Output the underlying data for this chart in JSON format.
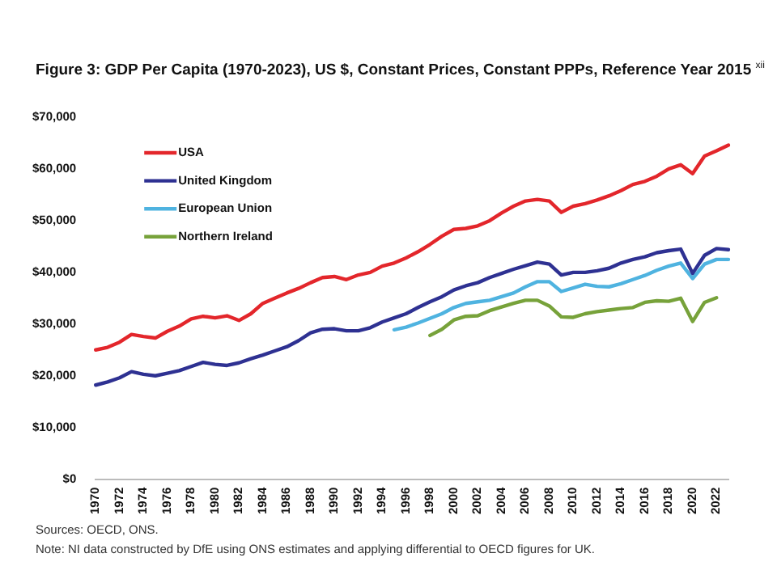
{
  "chart_data": {
    "type": "line",
    "title": "Figure 3: GDP Per Capita (1970-2023), US $, Constant Prices, Constant PPPs, Reference Year 2015 $^{xii}$",
    "categories": [
      "1970",
      null,
      "1972",
      null,
      "1974",
      null,
      "1976",
      null,
      "1978",
      null,
      "1980",
      null,
      "1982",
      null,
      "1984",
      null,
      "1986",
      null,
      "1988",
      null,
      "1990",
      null,
      "1992",
      null,
      "1994",
      null,
      "1996",
      null,
      "1998",
      null,
      "2000",
      null,
      "2002",
      null,
      "2004",
      null,
      "2006",
      null,
      "2008",
      null,
      "2010",
      null,
      "2012",
      null,
      "2014",
      null,
      "2016",
      null,
      "2018",
      null,
      "2020",
      null,
      "2022",
      null
    ],
    "series": [
      {
        "name": "USA",
        "color": "#e3262b",
        "values": [
          25000,
          25500,
          26500,
          28000,
          27600,
          27300,
          28600,
          29600,
          31000,
          31500,
          31200,
          31600,
          30700,
          32000,
          34000,
          35000,
          36000,
          36900,
          38000,
          39000,
          39200,
          38600,
          39500,
          40000,
          41200,
          41800,
          42800,
          44000,
          45400,
          47000,
          48300,
          48500,
          49000,
          50000,
          51500,
          52800,
          53800,
          54100,
          53800,
          51600,
          52800,
          53300,
          54000,
          54800,
          55800,
          57000,
          57600,
          58600,
          60000,
          60800,
          59100,
          62500,
          63500,
          64600
        ]
      },
      {
        "name": "United Kingdom",
        "color": "#2e3192",
        "values": [
          18200,
          18800,
          19600,
          20800,
          20300,
          20000,
          20500,
          21000,
          21800,
          22600,
          22200,
          22000,
          22500,
          23300,
          24000,
          24800,
          25600,
          26800,
          28300,
          29000,
          29100,
          28700,
          28700,
          29300,
          30400,
          31200,
          32000,
          33200,
          34300,
          35300,
          36600,
          37400,
          38000,
          39000,
          39800,
          40600,
          41300,
          42000,
          41600,
          39500,
          40000,
          40000,
          40300,
          40800,
          41800,
          42500,
          43000,
          43800,
          44200,
          44500,
          39800,
          43300,
          44600,
          44400
        ]
      },
      {
        "name": "European Union",
        "color": "#4fb3e0",
        "values": [
          null,
          null,
          null,
          null,
          null,
          null,
          null,
          null,
          null,
          null,
          null,
          null,
          null,
          null,
          null,
          null,
          null,
          null,
          null,
          null,
          null,
          null,
          null,
          null,
          null,
          28900,
          29400,
          30200,
          31100,
          32000,
          33200,
          34000,
          34300,
          34600,
          35300,
          36000,
          37200,
          38200,
          38200,
          36300,
          37000,
          37700,
          37300,
          37200,
          37800,
          38600,
          39400,
          40400,
          41200,
          41800,
          38800,
          41600,
          42500,
          42500
        ]
      },
      {
        "name": "Northern Ireland",
        "color": "#77a23a",
        "values": [
          null,
          null,
          null,
          null,
          null,
          null,
          null,
          null,
          null,
          null,
          null,
          null,
          null,
          null,
          null,
          null,
          null,
          null,
          null,
          null,
          null,
          null,
          null,
          null,
          null,
          null,
          null,
          null,
          27800,
          29000,
          30800,
          31500,
          31600,
          32600,
          33300,
          34000,
          34600,
          34600,
          33500,
          31400,
          31300,
          32000,
          32400,
          32700,
          33000,
          33200,
          34200,
          34500,
          34400,
          35000,
          30500,
          34200,
          35100,
          null
        ]
      }
    ],
    "ylim": [
      0,
      70000
    ],
    "yticks": [
      {
        "value": 0,
        "label": "$0"
      },
      {
        "value": 10000,
        "label": "$10,000"
      },
      {
        "value": 20000,
        "label": "$20,000"
      },
      {
        "value": 30000,
        "label": "$30,000"
      },
      {
        "value": 40000,
        "label": "$40,000"
      },
      {
        "value": 50000,
        "label": "$50,000"
      },
      {
        "value": 60000,
        "label": "$60,000"
      },
      {
        "value": 70000,
        "label": "$70,000"
      }
    ],
    "grid": false,
    "legend": "top left",
    "marker": "none",
    "line_style": "solid",
    "annotations": [
      "Sources: OECD, ONS.",
      "Note: NI data constructed by DfE using ONS estimates and applying differential to OECD figures for UK."
    ]
  }
}
